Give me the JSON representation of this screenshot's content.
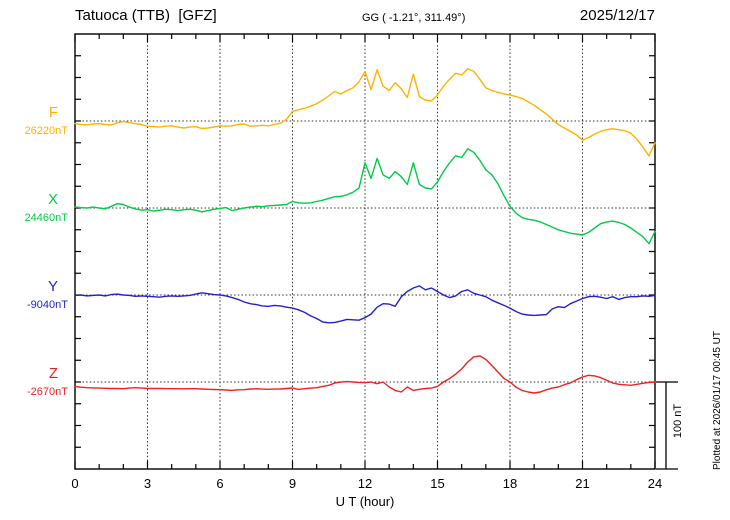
{
  "header": {
    "title": "Tatuoca (TTB)  [GFZ]",
    "geo_coords": "GG ( -1.21°, 311.49°)",
    "date": "2025/12/17"
  },
  "annotations": {
    "scale_bar_label": "100 nT",
    "plotted_at": "Plotted at 2026/01/17 00:45 UT"
  },
  "chart_data": {
    "type": "line",
    "title": "Tatuoca (TTB)  [GFZ]",
    "subtitle": "GG ( -1.21°, 311.49°)",
    "date": "2025/12/17",
    "xlabel": "U T (hour)",
    "x_range": [
      0,
      24
    ],
    "x_major_ticks": [
      0,
      3,
      6,
      9,
      12,
      15,
      18,
      21,
      24
    ],
    "x_minor_step_hours": 1,
    "y_tick_interval_nT": 25,
    "trace_offset_nT": 100,
    "grid": "dotted vertical lines every 3 h; dotted horizontal line at each trace baseline",
    "scale_bar": {
      "label": "100 nT",
      "length_nT": 100
    },
    "plotted_at": "Plotted at 2026/01/17 00:45 UT",
    "sample_step_hours": 0.25,
    "series": [
      {
        "name": "F",
        "baseline_label": "26220nT",
        "baseline_nT": 26220,
        "color": "#ffb300",
        "dev_nT": [
          -3,
          -4,
          -4.5,
          -3.5,
          -3,
          -4,
          -4.5,
          -2,
          -0.5,
          -2,
          -3,
          -4,
          -6,
          -6.5,
          -7,
          -6,
          -5.5,
          -7,
          -8,
          -7,
          -6.5,
          -8.5,
          -8,
          -7,
          -5.5,
          -6,
          -5.5,
          -4,
          -3.5,
          -6,
          -5.5,
          -5,
          -5.5,
          -4,
          -2.5,
          2,
          11,
          13,
          14.5,
          17,
          20,
          24,
          29,
          34,
          31,
          35,
          38,
          45,
          57,
          36,
          59,
          40,
          35,
          44,
          37,
          27,
          54,
          28,
          24,
          23,
          30,
          40,
          48,
          55,
          53,
          60,
          57,
          48,
          38,
          35,
          33,
          31,
          30,
          28,
          26,
          22,
          18,
          13,
          8,
          2,
          -4,
          -8,
          -12,
          -16,
          -22,
          -19,
          -15,
          -12,
          -10,
          -9,
          -10,
          -11,
          -14,
          -21,
          -30,
          -40,
          -25
        ]
      },
      {
        "name": "X",
        "baseline_label": "24460nT",
        "baseline_nT": 24460,
        "color": "#00cc44",
        "dev_nT": [
          1,
          0.5,
          0,
          1,
          0,
          -1,
          2,
          5,
          4,
          1,
          -1,
          -2.5,
          -2,
          -3.5,
          -2.5,
          -1.5,
          -2,
          -3,
          -2,
          -1.5,
          -2.5,
          -4.5,
          -3,
          -1.5,
          -0.5,
          0.5,
          -3,
          -1.5,
          0,
          1,
          2,
          1.5,
          2.5,
          3,
          3.5,
          4,
          7.5,
          6,
          5.5,
          6,
          7.5,
          9,
          11,
          13,
          13.5,
          15,
          18,
          23,
          52,
          34,
          57,
          38,
          34,
          42,
          36,
          27,
          52,
          27,
          23,
          22,
          30,
          42,
          52,
          60,
          58,
          68,
          64,
          55,
          44,
          38,
          28,
          14,
          2,
          -6,
          -11,
          -13,
          -14,
          -16,
          -19,
          -22,
          -25,
          -27,
          -29,
          -30,
          -31,
          -28,
          -23,
          -18,
          -16,
          -15,
          -16.5,
          -19,
          -23,
          -28,
          -33,
          -41,
          -27
        ]
      },
      {
        "name": "Y",
        "baseline_label": "-9040nT",
        "baseline_nT": -9040,
        "color": "#2222cc",
        "dev_nT": [
          -0.5,
          0,
          -1,
          -0.5,
          0,
          -1,
          0.5,
          1,
          0,
          -0.5,
          -1.5,
          -1,
          -1.5,
          -2,
          -2.5,
          -1.5,
          -1,
          -1.5,
          -1,
          -0.5,
          1,
          2.5,
          1.5,
          0.5,
          0,
          -1,
          -3,
          -5,
          -8,
          -10,
          -11,
          -12.5,
          -13,
          -12,
          -12.5,
          -14,
          -15,
          -17,
          -20,
          -24,
          -27,
          -31,
          -32,
          -31.5,
          -30,
          -28,
          -28.5,
          -29,
          -26,
          -22,
          -14,
          -10,
          -10.5,
          -13,
          -2,
          4,
          8,
          10.5,
          6,
          8,
          4,
          0,
          -3,
          -1,
          4,
          6,
          2,
          0,
          -2,
          -6,
          -9,
          -12,
          -15,
          -19,
          -22,
          -23,
          -23.5,
          -23,
          -22.5,
          -16,
          -13.5,
          -14.5,
          -10,
          -7,
          -4,
          -2,
          -1.5,
          -2.5,
          -4,
          -2,
          -5,
          -3,
          -2,
          -2,
          -1,
          -1.5,
          -0.5
        ]
      },
      {
        "name": "Z",
        "baseline_label": "-2670nT",
        "baseline_nT": -2670,
        "color": "#ee2222",
        "dev_nT": [
          -5,
          -6,
          -6.5,
          -6.8,
          -7,
          -7.2,
          -7.5,
          -7.5,
          -7.7,
          -7,
          -6.5,
          -7,
          -7.3,
          -7.5,
          -7.5,
          -7.6,
          -7.7,
          -7.7,
          -7.8,
          -7.7,
          -7.7,
          -8,
          -8.4,
          -8.6,
          -8.8,
          -9.2,
          -9.6,
          -9,
          -8.8,
          -8,
          -7.7,
          -8.2,
          -8.4,
          -8.2,
          -8,
          -7.5,
          -6.9,
          -8.5,
          -7.7,
          -7,
          -6.5,
          -5,
          -3.8,
          -1.2,
          0,
          0.5,
          0,
          -0.5,
          -0.8,
          0,
          -1.9,
          0,
          -5.8,
          -9.6,
          -11.5,
          -5.8,
          -9.6,
          -8.4,
          -7.5,
          -7,
          -5,
          0,
          4,
          9,
          15,
          23,
          29,
          30,
          26,
          19,
          11.5,
          4,
          0,
          -6,
          -9.6,
          -11.5,
          -12.7,
          -11.5,
          -9,
          -7,
          -5.8,
          -3,
          -1,
          2.7,
          5.8,
          7.7,
          7,
          5,
          2,
          -1,
          -2.7,
          -3.2,
          -3.8,
          -2.7,
          -1.5,
          -0.5,
          0
        ]
      }
    ]
  }
}
